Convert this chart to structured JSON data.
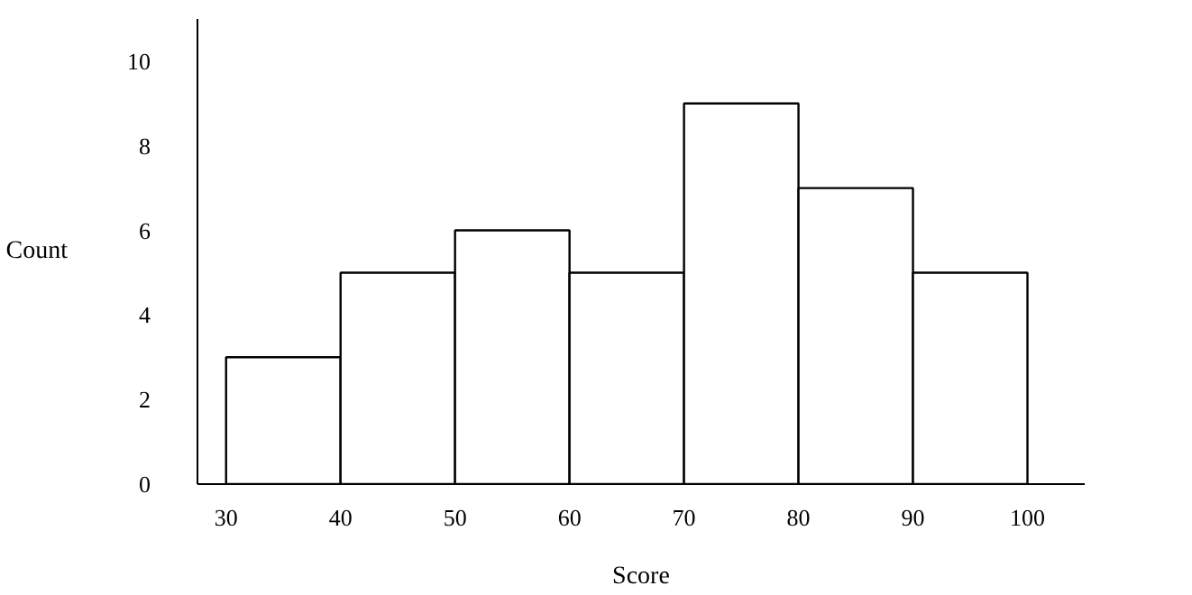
{
  "chart_data": {
    "type": "histogram",
    "xlabel": "Score",
    "ylabel": "Count",
    "bins": [
      30,
      40,
      50,
      60,
      70,
      80,
      90,
      100
    ],
    "values": [
      3,
      5,
      6,
      5,
      9,
      7,
      5
    ],
    "color": "#ffffff",
    "xlim": [
      27.5,
      105
    ],
    "ylim": [
      0,
      11
    ],
    "xticks": [
      30,
      40,
      50,
      60,
      70,
      80,
      90,
      100
    ],
    "yticks": [
      0,
      2,
      4,
      6,
      8,
      10
    ],
    "grid": false
  }
}
